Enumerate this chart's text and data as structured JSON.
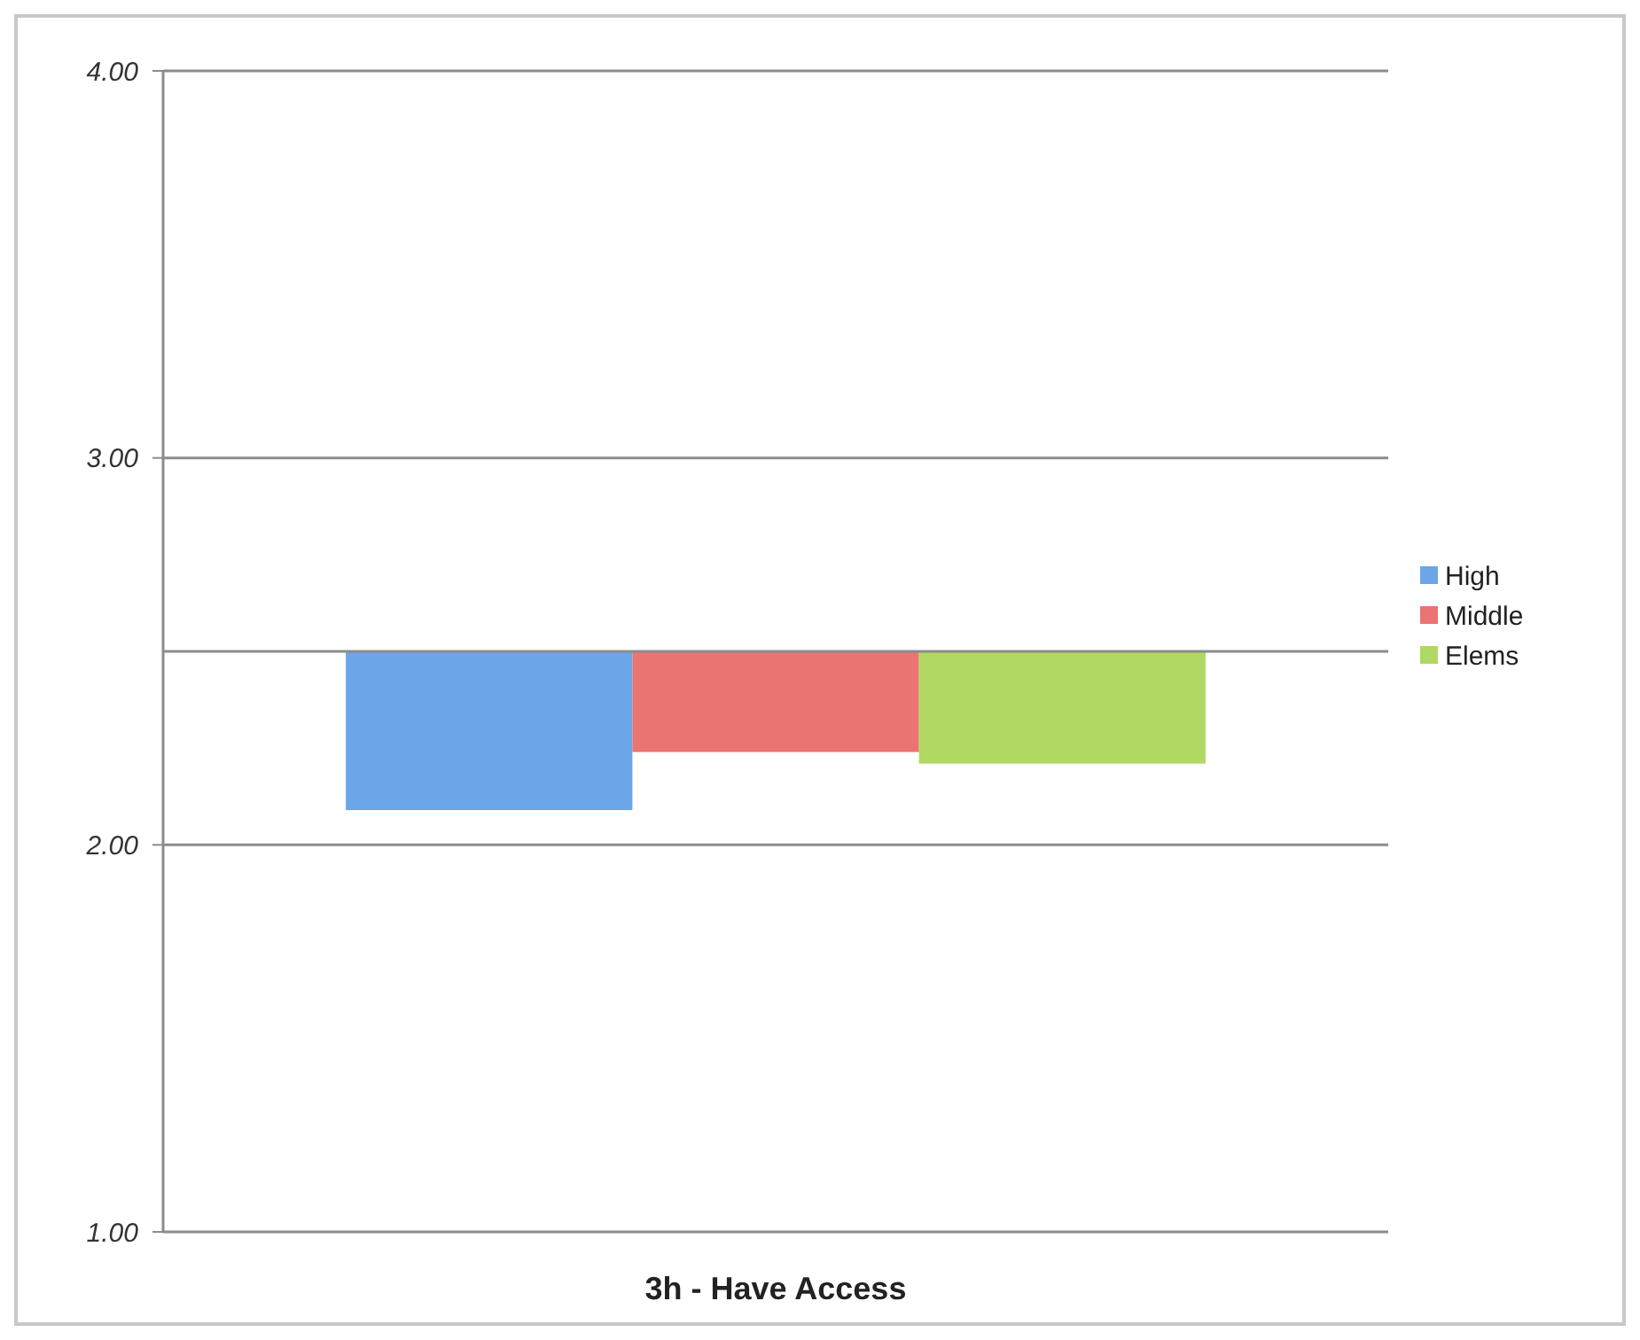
{
  "chart_data": {
    "type": "bar",
    "categories": [
      "3h - Have Access"
    ],
    "series": [
      {
        "name": "High",
        "color": "#6aa6e8",
        "base": [
          2.5
        ],
        "values": [
          -0.41
        ]
      },
      {
        "name": "Middle",
        "color": "#e97471",
        "base": [
          2.5
        ],
        "values": [
          -0.26
        ]
      },
      {
        "name": "Elems",
        "color": "#b0d862",
        "base": [
          2.5
        ],
        "values": [
          -0.29
        ]
      }
    ],
    "ylim": [
      1,
      4
    ],
    "yticks": [
      {
        "value": 1,
        "label": "1.00"
      },
      {
        "value": 2,
        "label": "2.00"
      },
      {
        "value": 3,
        "label": "3.00"
      },
      {
        "value": 4,
        "label": "4.00"
      }
    ],
    "grid": "y",
    "legend": "right"
  }
}
